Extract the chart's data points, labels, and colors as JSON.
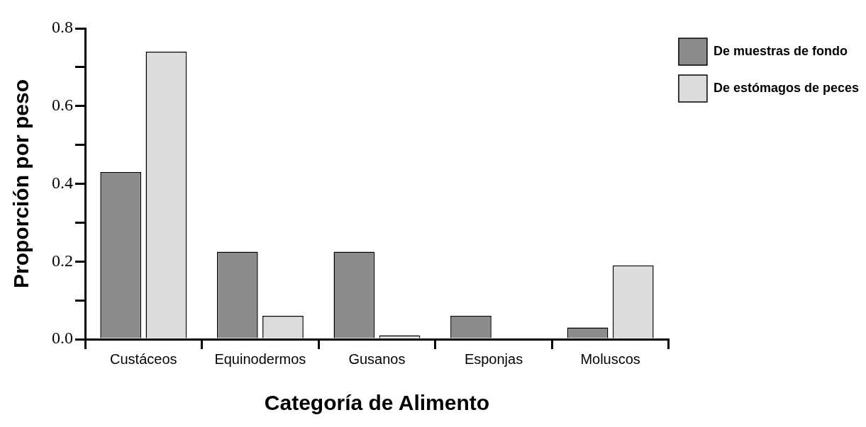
{
  "chart_data": {
    "type": "bar",
    "xlabel": "Categoría de Alimento",
    "ylabel": "Proporción por peso",
    "categories": [
      "Custáceos",
      "Equinodermos",
      "Gusanos",
      "Esponjas",
      "Moluscos"
    ],
    "series": [
      {
        "name": "De muestras de fondo",
        "color": "#8c8c8c",
        "values": [
          0.43,
          0.225,
          0.225,
          0.06,
          0.03
        ]
      },
      {
        "name": "De estómagos de peces",
        "color": "#dcdcdc",
        "values": [
          0.74,
          0.06,
          0.01,
          0,
          0.19
        ]
      }
    ],
    "ylim": [
      0,
      0.8
    ],
    "yticks": [
      {
        "value": 0,
        "label": "0.0"
      },
      {
        "value": 0.1,
        "label": null
      },
      {
        "value": 0.2,
        "label": "0.2"
      },
      {
        "value": 0.3,
        "label": null
      },
      {
        "value": 0.4,
        "label": "0.4"
      },
      {
        "value": 0.5,
        "label": null
      },
      {
        "value": 0.6,
        "label": "0.6"
      },
      {
        "value": 0.7,
        "label": null
      },
      {
        "value": 0.8,
        "label": "0.8"
      }
    ],
    "grid": false,
    "legend": "top right"
  }
}
